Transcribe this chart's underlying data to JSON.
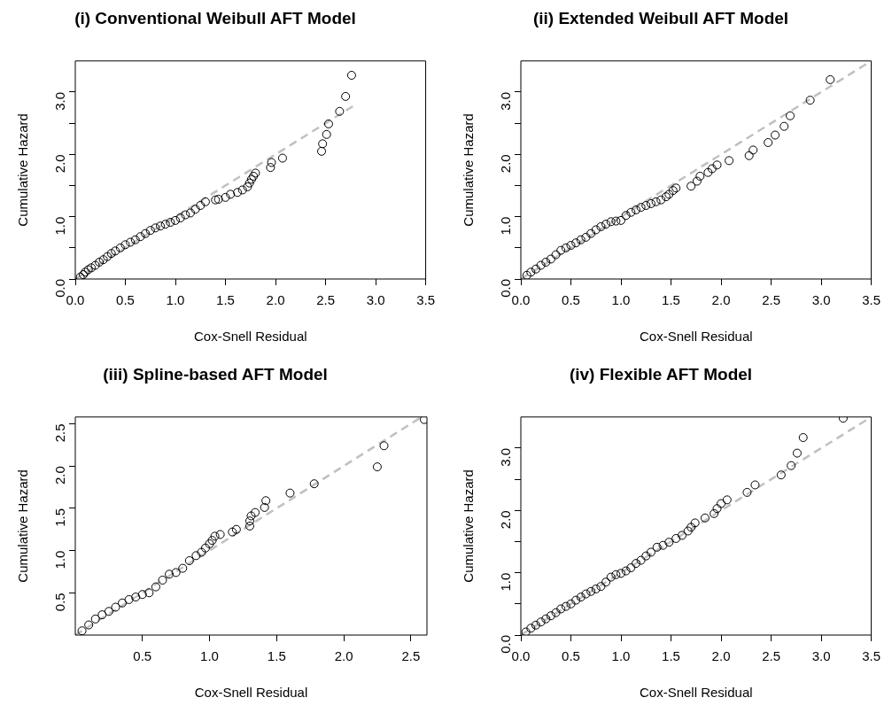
{
  "chart_data": [
    {
      "type": "scatter",
      "title": "(i) Conventional Weibull AFT Model",
      "xlabel": "Cox-Snell Residual",
      "ylabel": "Cumulative Hazard",
      "xlim": [
        0,
        3.5
      ],
      "ylim": [
        0,
        3.5
      ],
      "xticks": [
        {
          "value": 0,
          "label": "0.0"
        },
        {
          "value": 0.5,
          "label": "0.5"
        },
        {
          "value": 1,
          "label": "1.0"
        },
        {
          "value": 1.5,
          "label": "1.5"
        },
        {
          "value": 2,
          "label": "2.0"
        },
        {
          "value": 2.5,
          "label": "2.5"
        },
        {
          "value": 3,
          "label": "3.0"
        },
        {
          "value": 3.5,
          "label": "3.5"
        }
      ],
      "yticks": [
        {
          "value": 0,
          "label": "0.0"
        },
        {
          "value": 0.5,
          "label": null
        },
        {
          "value": 1,
          "label": "1.0"
        },
        {
          "value": 1.5,
          "label": null
        },
        {
          "value": 2,
          "label": "2.0"
        },
        {
          "value": 2.5,
          "label": null
        },
        {
          "value": 3,
          "label": "3.0"
        }
      ],
      "series": [
        {
          "type": "scatter",
          "color": "#000000",
          "marker": "circle",
          "x": [
            0.05,
            0.08,
            0.1,
            0.13,
            0.16,
            0.2,
            0.24,
            0.28,
            0.32,
            0.36,
            0.4,
            0.45,
            0.5,
            0.55,
            0.6,
            0.65,
            0.7,
            0.75,
            0.8,
            0.85,
            0.9,
            0.95,
            1.0,
            1.05,
            1.1,
            1.15,
            1.2,
            1.25,
            1.3,
            1.4,
            1.43,
            1.5,
            1.55,
            1.62,
            1.67,
            1.72,
            1.74,
            1.76,
            1.78,
            1.8,
            1.95,
            1.96,
            2.07,
            2.46,
            2.47,
            2.51,
            2.53,
            2.64,
            2.7,
            2.76
          ],
          "values": [
            0.03,
            0.07,
            0.11,
            0.15,
            0.18,
            0.22,
            0.27,
            0.31,
            0.36,
            0.41,
            0.45,
            0.5,
            0.55,
            0.59,
            0.63,
            0.68,
            0.73,
            0.78,
            0.82,
            0.85,
            0.88,
            0.91,
            0.94,
            0.98,
            1.03,
            1.06,
            1.12,
            1.18,
            1.24,
            1.27,
            1.28,
            1.31,
            1.36,
            1.39,
            1.43,
            1.48,
            1.54,
            1.6,
            1.65,
            1.7,
            1.79,
            1.87,
            1.94,
            2.05,
            2.17,
            2.32,
            2.49,
            2.69,
            2.93,
            3.27
          ]
        },
        {
          "type": "line",
          "color": "#c0c0c0",
          "marker": "none",
          "line_style": "dashed",
          "x": [
            0,
            2.78
          ],
          "values": [
            0,
            2.78
          ]
        }
      ]
    },
    {
      "type": "scatter",
      "title": "(ii) Extended Weibull AFT Model",
      "xlabel": "Cox-Snell Residual",
      "ylabel": "Cumulative Hazard",
      "xlim": [
        0,
        3.5
      ],
      "ylim": [
        0,
        3.5
      ],
      "xticks": [
        {
          "value": 0,
          "label": "0.0"
        },
        {
          "value": 0.5,
          "label": "0.5"
        },
        {
          "value": 1,
          "label": "1.0"
        },
        {
          "value": 1.5,
          "label": "1.5"
        },
        {
          "value": 2,
          "label": "2.0"
        },
        {
          "value": 2.5,
          "label": "2.5"
        },
        {
          "value": 3,
          "label": "3.0"
        },
        {
          "value": 3.5,
          "label": "3.5"
        }
      ],
      "yticks": [
        {
          "value": 0,
          "label": "0.0"
        },
        {
          "value": 0.5,
          "label": null
        },
        {
          "value": 1,
          "label": "1.0"
        },
        {
          "value": 1.5,
          "label": null
        },
        {
          "value": 2,
          "label": "2.0"
        },
        {
          "value": 2.5,
          "label": null
        },
        {
          "value": 3,
          "label": "3.0"
        }
      ],
      "series": [
        {
          "type": "scatter",
          "color": "#000000",
          "marker": "circle",
          "x": [
            0.06,
            0.1,
            0.15,
            0.2,
            0.25,
            0.3,
            0.35,
            0.4,
            0.45,
            0.5,
            0.55,
            0.6,
            0.65,
            0.7,
            0.75,
            0.8,
            0.85,
            0.9,
            0.95,
            1.0,
            1.05,
            1.1,
            1.15,
            1.2,
            1.25,
            1.3,
            1.35,
            1.4,
            1.45,
            1.48,
            1.52,
            1.55,
            1.7,
            1.76,
            1.79,
            1.87,
            1.91,
            1.96,
            2.08,
            2.28,
            2.32,
            2.47,
            2.54,
            2.63,
            2.69,
            2.89,
            3.09
          ],
          "values": [
            0.06,
            0.11,
            0.16,
            0.22,
            0.27,
            0.32,
            0.39,
            0.46,
            0.5,
            0.54,
            0.58,
            0.63,
            0.67,
            0.73,
            0.79,
            0.84,
            0.88,
            0.92,
            0.93,
            0.94,
            1.02,
            1.07,
            1.11,
            1.15,
            1.18,
            1.21,
            1.24,
            1.27,
            1.32,
            1.36,
            1.42,
            1.46,
            1.49,
            1.57,
            1.65,
            1.71,
            1.77,
            1.83,
            1.9,
            1.98,
            2.07,
            2.19,
            2.31,
            2.45,
            2.62,
            2.87,
            3.2
          ]
        },
        {
          "type": "line",
          "color": "#c0c0c0",
          "marker": "none",
          "line_style": "dashed",
          "x": [
            0,
            3.5
          ],
          "values": [
            0,
            3.5
          ]
        }
      ]
    },
    {
      "type": "scatter",
      "title": "(iii) Spline-based AFT Model",
      "xlabel": "Cox-Snell Residual",
      "ylabel": "Cumulative Hazard",
      "xlim": [
        0,
        2.62
      ],
      "ylim": [
        0,
        2.58
      ],
      "xticks": [
        {
          "value": 0.5,
          "label": "0.5"
        },
        {
          "value": 1,
          "label": "1.0"
        },
        {
          "value": 1.5,
          "label": "1.5"
        },
        {
          "value": 2,
          "label": "2.0"
        },
        {
          "value": 2.5,
          "label": "2.5"
        }
      ],
      "yticks": [
        {
          "value": 0.5,
          "label": "0.5"
        },
        {
          "value": 1,
          "label": "1.0"
        },
        {
          "value": 1.5,
          "label": "1.5"
        },
        {
          "value": 2,
          "label": "2.0"
        },
        {
          "value": 2.5,
          "label": "2.5"
        }
      ],
      "series": [
        {
          "type": "scatter",
          "color": "#000000",
          "marker": "circle",
          "x": [
            0.05,
            0.1,
            0.15,
            0.2,
            0.25,
            0.3,
            0.35,
            0.4,
            0.45,
            0.5,
            0.55,
            0.6,
            0.65,
            0.7,
            0.75,
            0.8,
            0.85,
            0.9,
            0.94,
            0.97,
            1.0,
            1.02,
            1.04,
            1.08,
            1.17,
            1.2,
            1.3,
            1.3,
            1.31,
            1.34,
            1.41,
            1.42,
            1.6,
            1.78,
            2.25,
            2.3,
            2.6
          ],
          "values": [
            0.05,
            0.12,
            0.19,
            0.24,
            0.28,
            0.33,
            0.38,
            0.42,
            0.45,
            0.48,
            0.5,
            0.57,
            0.65,
            0.72,
            0.74,
            0.79,
            0.88,
            0.94,
            0.98,
            1.03,
            1.08,
            1.12,
            1.17,
            1.19,
            1.22,
            1.25,
            1.29,
            1.35,
            1.41,
            1.45,
            1.51,
            1.59,
            1.68,
            1.79,
            1.99,
            2.24,
            2.55
          ]
        },
        {
          "type": "line",
          "color": "#c0c0c0",
          "marker": "none",
          "line_style": "dashed",
          "x": [
            0,
            2.58
          ],
          "values": [
            0,
            2.58
          ]
        }
      ]
    },
    {
      "type": "scatter",
      "title": "(iv) Flexible AFT Model",
      "xlabel": "Cox-Snell Residual",
      "ylabel": "Cumulative Hazard",
      "xlim": [
        0,
        3.5
      ],
      "ylim": [
        0,
        3.5
      ],
      "xticks": [
        {
          "value": 0,
          "label": "0.0"
        },
        {
          "value": 0.5,
          "label": "0.5"
        },
        {
          "value": 1,
          "label": "1.0"
        },
        {
          "value": 1.5,
          "label": "1.5"
        },
        {
          "value": 2,
          "label": "2.0"
        },
        {
          "value": 2.5,
          "label": "2.5"
        },
        {
          "value": 3,
          "label": "3.0"
        },
        {
          "value": 3.5,
          "label": "3.5"
        }
      ],
      "yticks": [
        {
          "value": 0,
          "label": "0.0"
        },
        {
          "value": 0.5,
          "label": null
        },
        {
          "value": 1,
          "label": "1.0"
        },
        {
          "value": 1.5,
          "label": null
        },
        {
          "value": 2,
          "label": "2.0"
        },
        {
          "value": 2.5,
          "label": null
        },
        {
          "value": 3,
          "label": "3.0"
        }
      ],
      "series": [
        {
          "type": "scatter",
          "color": "#000000",
          "marker": "circle",
          "x": [
            0.05,
            0.1,
            0.15,
            0.2,
            0.25,
            0.3,
            0.35,
            0.4,
            0.45,
            0.5,
            0.55,
            0.6,
            0.65,
            0.7,
            0.75,
            0.8,
            0.85,
            0.9,
            0.95,
            1.0,
            1.05,
            1.1,
            1.15,
            1.2,
            1.25,
            1.3,
            1.36,
            1.42,
            1.48,
            1.55,
            1.61,
            1.67,
            1.7,
            1.74,
            1.84,
            1.93,
            1.96,
            2.0,
            2.06,
            2.26,
            2.34,
            2.6,
            2.7,
            2.76,
            2.82,
            3.22
          ],
          "values": [
            0.05,
            0.11,
            0.16,
            0.21,
            0.26,
            0.31,
            0.36,
            0.42,
            0.46,
            0.5,
            0.56,
            0.61,
            0.66,
            0.7,
            0.74,
            0.78,
            0.85,
            0.93,
            0.97,
            0.99,
            1.03,
            1.08,
            1.15,
            1.2,
            1.27,
            1.33,
            1.41,
            1.44,
            1.49,
            1.55,
            1.6,
            1.67,
            1.73,
            1.8,
            1.88,
            1.95,
            2.03,
            2.11,
            2.17,
            2.29,
            2.41,
            2.57,
            2.72,
            2.92,
            3.17,
            3.48
          ]
        },
        {
          "type": "line",
          "color": "#c0c0c0",
          "marker": "none",
          "line_style": "dashed",
          "x": [
            0,
            3.5
          ],
          "values": [
            0,
            3.5
          ]
        }
      ]
    }
  ]
}
